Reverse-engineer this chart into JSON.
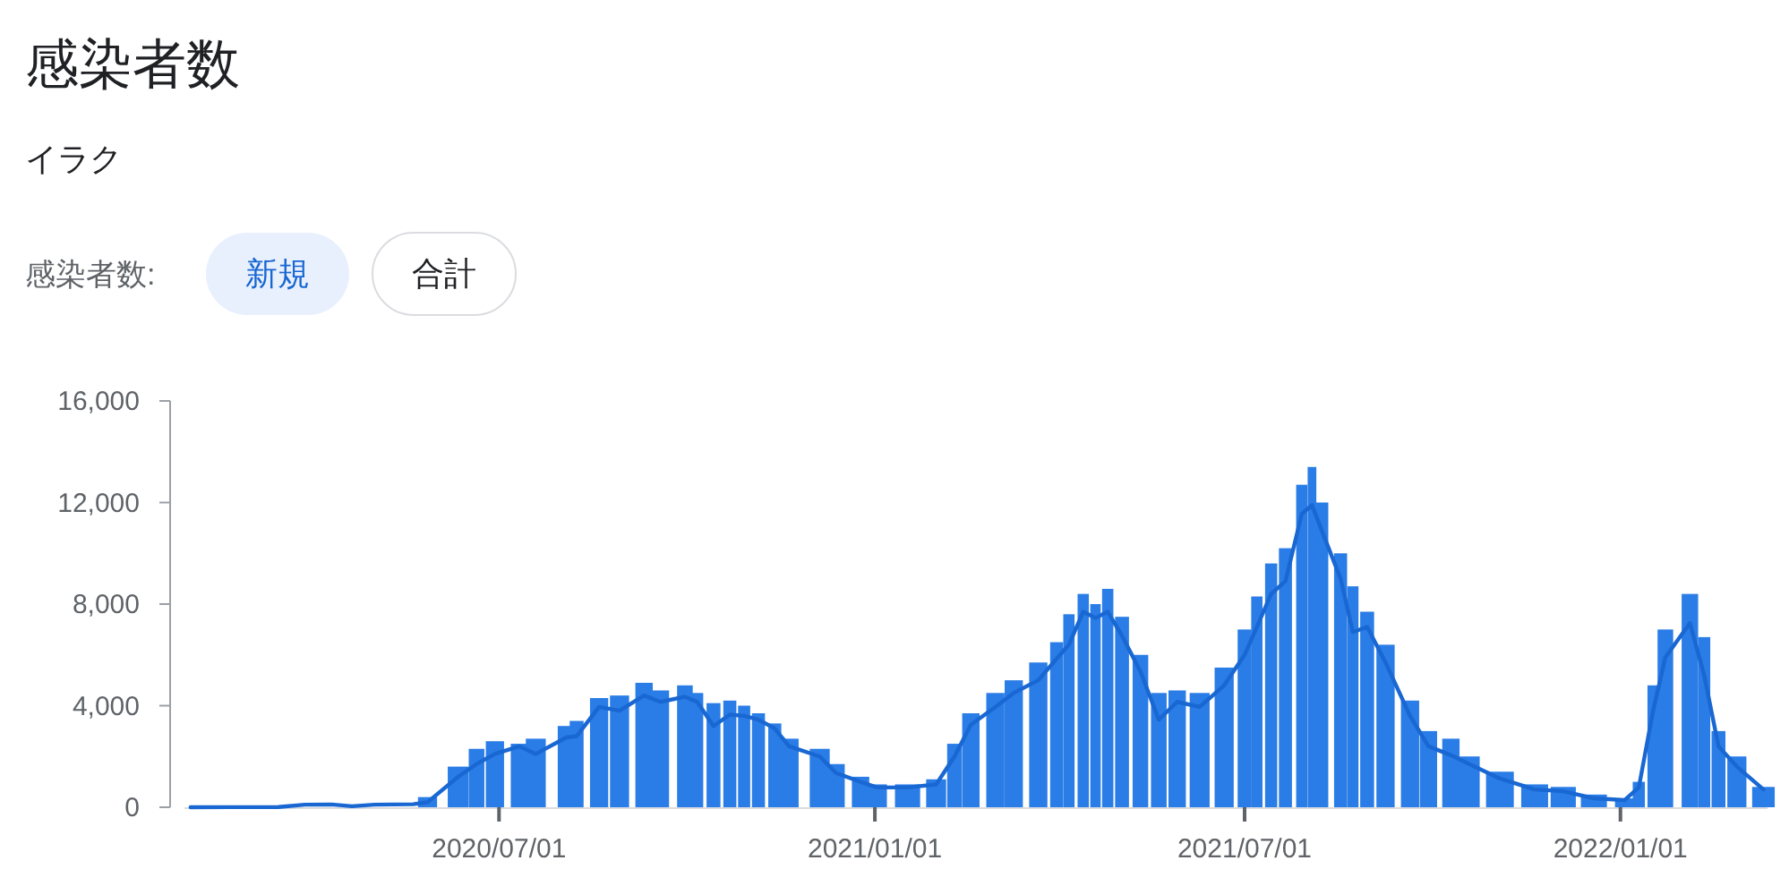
{
  "chart_data": {
    "type": "bar",
    "title": "感染者数",
    "subtitle": "イラク",
    "annotations": [
      "感染者数:",
      "新規",
      "合計"
    ],
    "x": [
      "2020-02-01",
      "2020-03-15",
      "2020-03-28",
      "2020-04-10",
      "2020-04-20",
      "2020-05-01",
      "2020-05-20",
      "2020-05-27",
      "2020-06-11",
      "2020-06-20",
      "2020-06-29",
      "2020-07-11",
      "2020-07-19",
      "2020-08-03",
      "2020-08-08",
      "2020-08-19",
      "2020-08-29",
      "2020-09-10",
      "2020-09-18",
      "2020-09-30",
      "2020-10-06",
      "2020-10-14",
      "2020-10-22",
      "2020-10-29",
      "2020-11-05",
      "2020-11-13",
      "2020-11-20",
      "2020-12-05",
      "2020-12-13",
      "2020-12-25",
      "2021-01-02",
      "2021-01-17",
      "2021-01-31",
      "2021-02-09",
      "2021-02-17",
      "2021-03-01",
      "2021-03-10",
      "2021-03-22",
      "2021-03-31",
      "2021-04-06",
      "2021-04-13",
      "2021-04-19",
      "2021-04-25",
      "2021-05-02",
      "2021-05-11",
      "2021-05-20",
      "2021-05-29",
      "2021-06-09",
      "2021-06-21",
      "2021-07-01",
      "2021-07-07",
      "2021-07-14",
      "2021-07-21",
      "2021-07-29",
      "2021-08-03",
      "2021-08-08",
      "2021-08-17",
      "2021-08-23",
      "2021-08-30",
      "2021-09-08",
      "2021-09-20",
      "2021-09-29",
      "2021-10-10",
      "2021-10-19",
      "2021-11-03",
      "2021-11-20",
      "2021-12-04",
      "2021-12-19",
      "2022-01-03",
      "2022-01-10",
      "2022-01-17",
      "2022-01-23",
      "2022-02-04",
      "2022-02-11",
      "2022-02-18",
      "2022-02-27",
      "2022-03-12"
    ],
    "series": [
      {
        "color": "#2a7de6",
        "values": [
          null,
          null,
          null,
          null,
          null,
          null,
          null,
          400,
          1600,
          2300,
          2600,
          2500,
          2700,
          3200,
          3400,
          4300,
          4400,
          4900,
          4600,
          4800,
          4500,
          4100,
          4200,
          4000,
          3700,
          3300,
          2700,
          2300,
          1700,
          1200,
          900,
          900,
          1100,
          2500,
          3700,
          4500,
          5000,
          5700,
          6500,
          7600,
          8400,
          8000,
          8600,
          7500,
          6000,
          4500,
          4600,
          4500,
          5500,
          7000,
          8300,
          9600,
          10200,
          12700,
          13400,
          12000,
          10000,
          8700,
          7700,
          6400,
          4200,
          3000,
          2700,
          2000,
          1400,
          900,
          800,
          500,
          350,
          1000,
          4800,
          7000,
          8400,
          6700,
          3000,
          2000,
          800
        ]
      },
      {
        "type": "line",
        "color": "#1967d2",
        "values": [
          0,
          10,
          100,
          110,
          40,
          100,
          120,
          200,
          1200,
          1700,
          2100,
          2400,
          2100,
          2750,
          2800,
          3950,
          3800,
          4400,
          4150,
          4350,
          4150,
          3200,
          3650,
          3600,
          3450,
          3100,
          2400,
          2000,
          1350,
          1000,
          780,
          780,
          900,
          2000,
          3250,
          3950,
          4500,
          5000,
          5850,
          6400,
          7700,
          7450,
          7700,
          6750,
          5350,
          3450,
          4150,
          3950,
          4800,
          6000,
          7100,
          8400,
          8900,
          11550,
          11900,
          10850,
          9000,
          6900,
          7100,
          5700,
          3600,
          2400,
          2050,
          1700,
          1130,
          700,
          630,
          350,
          280,
          780,
          3800,
          5900,
          7250,
          5200,
          2400,
          1600,
          700
        ]
      }
    ],
    "xlim": [
      "2020-01-29",
      "2022-03-14"
    ],
    "xticks": [
      {
        "value": "2020-07-01",
        "label": "2020/07/01"
      },
      {
        "value": "2021-01-01",
        "label": "2021/01/01"
      },
      {
        "value": "2021-07-01",
        "label": "2021/07/01"
      },
      {
        "value": "2022-01-01",
        "label": "2022/01/01"
      }
    ],
    "ylim": [
      0,
      16000
    ],
    "yticks": [
      {
        "value": 0,
        "label": "0"
      },
      {
        "value": 4000,
        "label": "4,000"
      },
      {
        "value": 8000,
        "label": "8,000"
      },
      {
        "value": 12000,
        "label": "12,000"
      },
      {
        "value": 16000,
        "label": "16,000"
      }
    ]
  }
}
